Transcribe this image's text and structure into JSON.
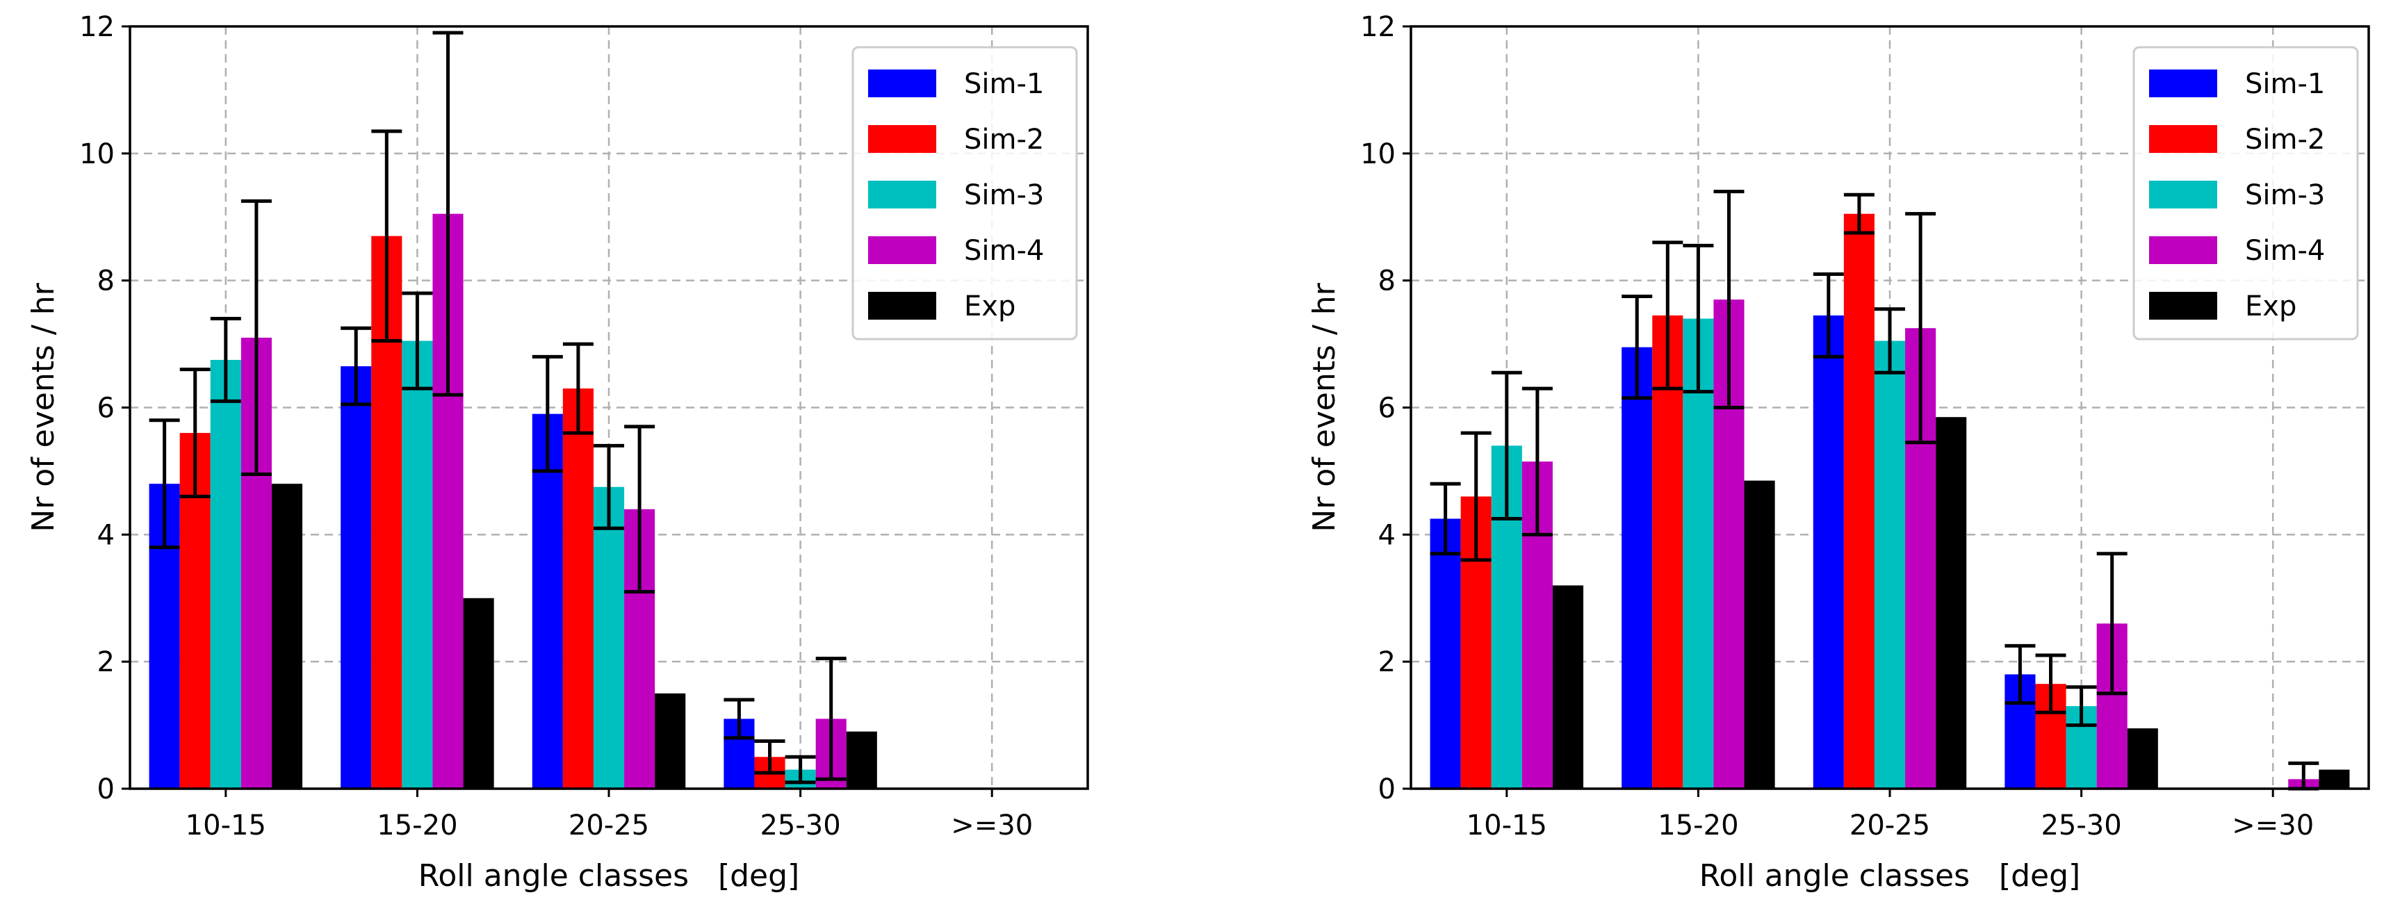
{
  "colors": {
    "Sim-1": "#0000ff",
    "Sim-2": "#ff0000",
    "Sim-3": "#00bfbf",
    "Sim-4": "#bf00bf",
    "Exp": "#000000"
  },
  "chart_data": [
    {
      "type": "bar",
      "title": "",
      "xlabel": "Roll angle classes   [deg]",
      "ylabel": "Nr of events / hr",
      "ylim": [
        0,
        12
      ],
      "yticks": [
        "0",
        "2",
        "4",
        "6",
        "8",
        "10",
        "12"
      ],
      "categories": [
        "10-15",
        "15-20",
        "20-25",
        "25-30",
        ">=30"
      ],
      "grid": true,
      "legend": "top-right",
      "series": [
        {
          "name": "Sim-1",
          "values": [
            4.8,
            6.65,
            5.9,
            1.1,
            0
          ],
          "errors": [
            1.0,
            0.6,
            0.9,
            0.3,
            0
          ]
        },
        {
          "name": "Sim-2",
          "values": [
            5.6,
            8.7,
            6.3,
            0.5,
            0
          ],
          "errors": [
            1.0,
            1.65,
            0.7,
            0.25,
            0
          ]
        },
        {
          "name": "Sim-3",
          "values": [
            6.75,
            7.05,
            4.75,
            0.3,
            0
          ],
          "errors": [
            0.65,
            0.75,
            0.65,
            0.2,
            0
          ]
        },
        {
          "name": "Sim-4",
          "values": [
            7.1,
            9.05,
            4.4,
            1.1,
            0
          ],
          "errors": [
            2.15,
            2.85,
            1.3,
            0.95,
            0
          ]
        },
        {
          "name": "Exp",
          "values": [
            4.8,
            3.0,
            1.5,
            0.9,
            0
          ],
          "errors": [
            0,
            0,
            0,
            0,
            0
          ]
        }
      ]
    },
    {
      "type": "bar",
      "title": "",
      "xlabel": "Roll angle classes   [deg]",
      "ylabel": "Nr of events / hr",
      "ylim": [
        0,
        12
      ],
      "yticks": [
        "0",
        "2",
        "4",
        "6",
        "8",
        "10",
        "12"
      ],
      "categories": [
        "10-15",
        "15-20",
        "20-25",
        "25-30",
        ">=30"
      ],
      "grid": true,
      "legend": "top-right",
      "series": [
        {
          "name": "Sim-1",
          "values": [
            4.25,
            6.95,
            7.45,
            1.8,
            0
          ],
          "errors": [
            0.55,
            0.8,
            0.65,
            0.45,
            0
          ]
        },
        {
          "name": "Sim-2",
          "values": [
            4.6,
            7.45,
            9.05,
            1.65,
            0
          ],
          "errors": [
            1.0,
            1.15,
            0.3,
            0.45,
            0
          ]
        },
        {
          "name": "Sim-3",
          "values": [
            5.4,
            7.4,
            7.05,
            1.3,
            0
          ],
          "errors": [
            1.15,
            1.15,
            0.5,
            0.3,
            0
          ]
        },
        {
          "name": "Sim-4",
          "values": [
            5.15,
            7.7,
            7.25,
            2.6,
            0.15
          ],
          "errors": [
            1.15,
            1.7,
            1.8,
            1.1,
            0.25
          ]
        },
        {
          "name": "Exp",
          "values": [
            3.2,
            4.85,
            5.85,
            0.95,
            0.3
          ],
          "errors": [
            0,
            0,
            0,
            0,
            0
          ]
        }
      ]
    }
  ]
}
